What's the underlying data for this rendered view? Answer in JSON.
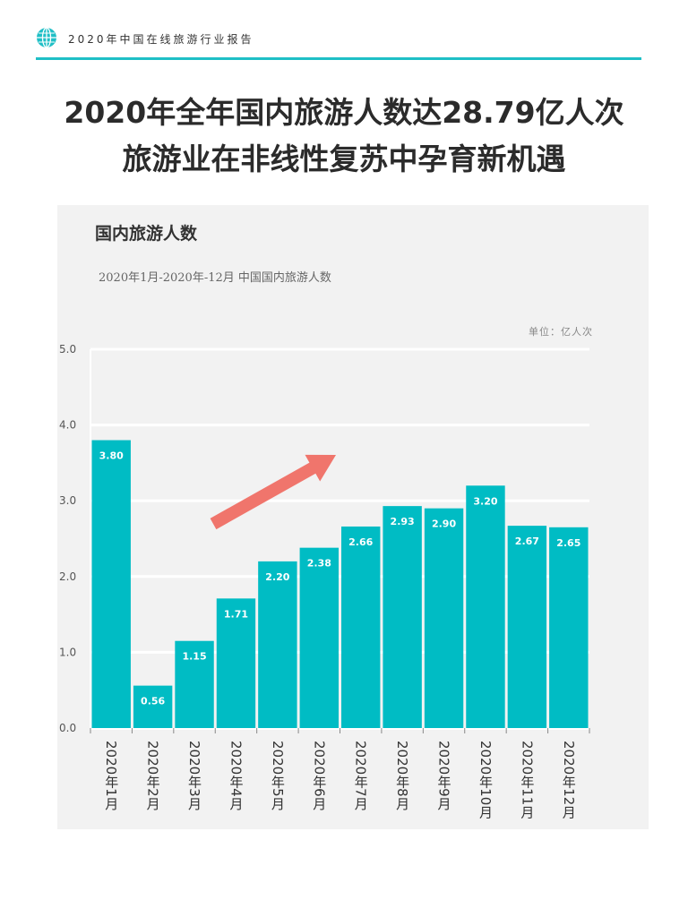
{
  "header": {
    "text": "2020年中国在线旅游行业报告",
    "icon": "globe-icon"
  },
  "headline": {
    "line1": "2020年全年国内旅游人数达28.79亿人次",
    "line2": "旅游业在非线性复苏中孕育新机遇"
  },
  "colors": {
    "accent": "#1fbfc6",
    "bar": "#00bcc4",
    "arrow": "#f0756c",
    "card": "#f2f2f2"
  },
  "chart_data": {
    "type": "bar",
    "title": "国内旅游人数",
    "subtitle": "2020年1月-2020年-12月 中国国内旅游人数",
    "unit": "单位：亿人次",
    "categories": [
      "2020年1月",
      "2020年2月",
      "2020年3月",
      "2020年4月",
      "2020年5月",
      "2020年6月",
      "2020年7月",
      "2020年8月",
      "2020年9月",
      "2020年10月",
      "2020年11月",
      "2020年12月"
    ],
    "values": [
      3.8,
      0.56,
      1.15,
      1.71,
      2.2,
      2.38,
      2.66,
      2.93,
      2.9,
      3.2,
      2.67,
      2.65
    ],
    "value_labels": [
      "3.80",
      "0.56",
      "1.15",
      "1.71",
      "2.20",
      "2.38",
      "2.66",
      "2.93",
      "2.90",
      "3.20",
      "2.67",
      "2.65"
    ],
    "ylim": [
      0,
      5
    ],
    "yticks": [
      "0.0",
      "1.0",
      "2.0",
      "3.0",
      "4.0",
      "5.0"
    ],
    "grid": true,
    "legend": "none",
    "annotation": "upward-trend-arrow"
  }
}
